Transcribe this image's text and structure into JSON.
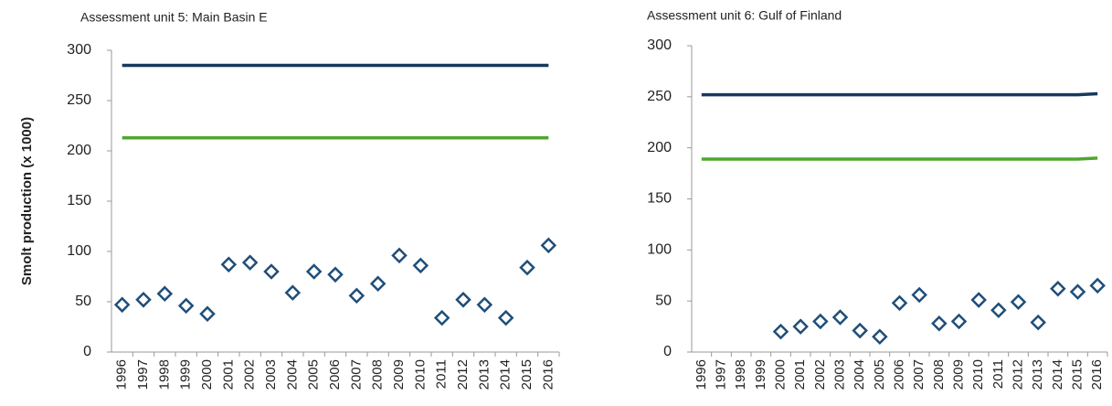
{
  "chart_data": [
    {
      "type": "line",
      "title": "Assessment unit 5: Main Basin E",
      "ylabel": "Smolt production (x 1000)",
      "categories": [
        "1996",
        "1997",
        "1998",
        "1999",
        "2000",
        "2001",
        "2002",
        "2003",
        "2004",
        "2005",
        "2006",
        "2007",
        "2008",
        "2009",
        "2010",
        "2011",
        "2012",
        "2013",
        "2014",
        "2015",
        "2016"
      ],
      "ylim": [
        0,
        300
      ],
      "yticks": [
        0,
        50,
        100,
        150,
        200,
        250,
        300
      ],
      "grid": false,
      "series": [
        {
          "color": "#17375e",
          "style": "line",
          "values": [
            285,
            285,
            285,
            285,
            285,
            285,
            285,
            285,
            285,
            285,
            285,
            285,
            285,
            285,
            285,
            285,
            285,
            285,
            285,
            285,
            285
          ]
        },
        {
          "color": "#4ea72e",
          "style": "line",
          "values": [
            213,
            213,
            213,
            213,
            213,
            213,
            213,
            213,
            213,
            213,
            213,
            213,
            213,
            213,
            213,
            213,
            213,
            213,
            213,
            213,
            213
          ]
        },
        {
          "color": "#1f4e79",
          "style": "marker",
          "values": [
            47,
            52,
            58,
            46,
            38,
            87,
            89,
            80,
            59,
            80,
            77,
            56,
            68,
            96,
            86,
            34,
            52,
            47,
            34,
            84,
            106
          ]
        }
      ]
    },
    {
      "type": "line",
      "title": "Assessment unit 6: Gulf of Finland",
      "categories": [
        "1996",
        "1997",
        "1998",
        "1999",
        "2000",
        "2001",
        "2002",
        "2003",
        "2004",
        "2005",
        "2006",
        "2007",
        "2008",
        "2009",
        "2010",
        "2011",
        "2012",
        "2013",
        "2014",
        "2015",
        "2016"
      ],
      "ylim": [
        0,
        300
      ],
      "yticks": [
        0,
        50,
        100,
        150,
        200,
        250,
        300
      ],
      "grid": false,
      "series": [
        {
          "color": "#17375e",
          "style": "line",
          "values": [
            252,
            252,
            252,
            252,
            252,
            252,
            252,
            252,
            252,
            252,
            252,
            252,
            252,
            252,
            252,
            252,
            252,
            252,
            252,
            252,
            253
          ]
        },
        {
          "color": "#4ea72e",
          "style": "line",
          "values": [
            189,
            189,
            189,
            189,
            189,
            189,
            189,
            189,
            189,
            189,
            189,
            189,
            189,
            189,
            189,
            189,
            189,
            189,
            189,
            189,
            190
          ]
        },
        {
          "color": "#1f4e79",
          "style": "marker",
          "values": [
            null,
            null,
            null,
            null,
            20,
            25,
            30,
            34,
            21,
            15,
            48,
            56,
            28,
            30,
            51,
            41,
            49,
            29,
            62,
            59,
            65
          ]
        }
      ]
    }
  ]
}
